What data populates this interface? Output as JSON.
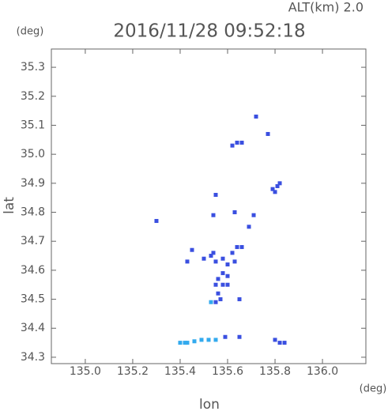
{
  "chart_data": {
    "type": "scatter",
    "title": "2016/11/28 09:52:18",
    "annotation": "ALT(km) 2.0",
    "y_unit": "(deg)",
    "x_unit": "(deg)",
    "xlabel": "lon",
    "ylabel": "lat",
    "xlim": [
      134.857,
      136.183
    ],
    "ylim": [
      34.278,
      35.363
    ],
    "xticks": [
      {
        "value": 135,
        "label": "135.0"
      },
      135.2,
      135.4,
      135.6,
      135.8,
      {
        "value": 136,
        "label": "136.0"
      }
    ],
    "yticks": [
      {
        "value": 34.3,
        "label": "34.3"
      },
      34.4,
      34.5,
      34.6,
      34.7,
      34.8,
      34.9,
      {
        "value": 35,
        "label": "35.0"
      },
      35.1,
      35.2,
      35.3
    ],
    "series": [
      {
        "color": "#3a4fe0",
        "x": [
          135.72,
          135.77,
          135.64,
          135.66,
          135.62,
          135.79,
          135.81,
          135.8,
          135.82,
          135.55,
          135.3,
          135.63,
          135.54,
          135.69,
          135.71,
          135.45,
          135.5,
          135.53,
          135.55,
          135.54,
          135.58,
          135.6,
          135.62,
          135.64,
          135.66,
          135.63,
          135.58,
          135.56,
          135.6,
          135.55,
          135.58,
          135.6,
          135.56,
          135.57,
          135.55,
          135.65,
          135.43,
          135.8,
          135.82,
          135.84,
          135.65,
          135.59
        ],
        "y": [
          35.13,
          35.07,
          35.04,
          35.04,
          35.03,
          34.88,
          34.89,
          34.87,
          34.9,
          34.86,
          34.77,
          34.8,
          34.79,
          34.75,
          34.79,
          34.67,
          34.64,
          34.65,
          34.63,
          34.66,
          34.64,
          34.62,
          34.66,
          34.68,
          34.68,
          34.63,
          34.59,
          34.57,
          34.58,
          34.55,
          34.55,
          34.55,
          34.52,
          34.5,
          34.49,
          34.5,
          34.63,
          34.36,
          34.35,
          34.35,
          34.37,
          34.37
        ]
      },
      {
        "color": "#33aaee",
        "x": [
          135.4,
          135.42,
          135.43,
          135.46,
          135.49,
          135.52,
          135.55,
          135.53
        ],
        "y": [
          34.35,
          34.35,
          34.35,
          34.355,
          34.36,
          34.36,
          34.36,
          34.49
        ]
      }
    ]
  }
}
